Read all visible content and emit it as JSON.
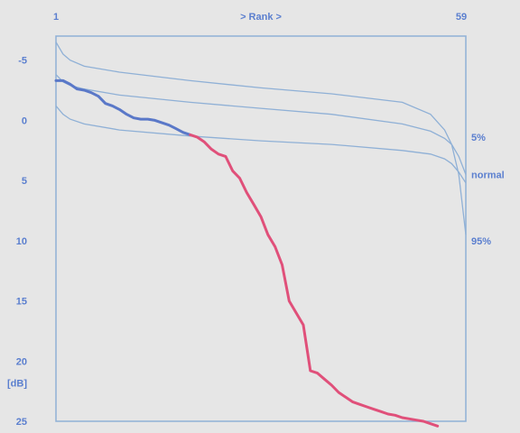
{
  "chart_data": {
    "type": "line",
    "title": "",
    "xlabel": "> Rank >",
    "ylabel": "[dB]",
    "x_tick_labels": [
      "1",
      "59"
    ],
    "xlim": [
      1,
      59
    ],
    "ylim": [
      -7,
      25
    ],
    "y_inverted": true,
    "y_ticks": [
      -5,
      0,
      5,
      10,
      15,
      20,
      25
    ],
    "grid": false,
    "colors": {
      "axis": "#8fb0d6",
      "text": "#5b7fcf",
      "envelope": "#8fb0d6",
      "observed_blue": "#5a78c8",
      "observed_red": "#e0507a"
    },
    "series": [
      {
        "name": "5%",
        "role": "envelope",
        "x": [
          1,
          2,
          3,
          5,
          10,
          20,
          30,
          40,
          50,
          54,
          56,
          57,
          58,
          59
        ],
        "y": [
          -1.2,
          -0.5,
          -0.1,
          0.3,
          0.8,
          1.3,
          1.7,
          2.0,
          2.5,
          2.8,
          3.2,
          3.6,
          4.3,
          5.2
        ]
      },
      {
        "name": "normal",
        "role": "envelope",
        "x": [
          1,
          2,
          3,
          5,
          10,
          20,
          30,
          40,
          50,
          54,
          56,
          57,
          58,
          59
        ],
        "y": [
          -3.8,
          -3.2,
          -2.9,
          -2.6,
          -2.1,
          -1.5,
          -1.0,
          -0.5,
          0.3,
          0.9,
          1.5,
          2.0,
          3.0,
          4.5
        ]
      },
      {
        "name": "95%",
        "role": "envelope",
        "x": [
          1,
          2,
          3,
          5,
          10,
          20,
          30,
          40,
          50,
          54,
          56,
          57,
          58,
          59
        ],
        "y": [
          -6.5,
          -5.5,
          -5.0,
          -4.5,
          -4.0,
          -3.3,
          -2.7,
          -2.2,
          -1.5,
          -0.5,
          0.8,
          2.0,
          4.5,
          9.5
        ]
      },
      {
        "role": "observed",
        "color_key": "observed_blue",
        "x": [
          1,
          2,
          3,
          4,
          5,
          6,
          7,
          8,
          9,
          10,
          11,
          12,
          13,
          14,
          15,
          16,
          17,
          18,
          19,
          20
        ],
        "y": [
          -3.3,
          -3.3,
          -3.0,
          -2.6,
          -2.5,
          -2.3,
          -2.0,
          -1.4,
          -1.2,
          -0.9,
          -0.5,
          -0.2,
          -0.1,
          -0.1,
          0.0,
          0.2,
          0.4,
          0.7,
          1.0,
          1.2
        ]
      },
      {
        "role": "observed",
        "color_key": "observed_red",
        "x": [
          20,
          21,
          22,
          23,
          24,
          25,
          26,
          27,
          28,
          29,
          30,
          31,
          32,
          33,
          34,
          35,
          36,
          37,
          38,
          39,
          40,
          41,
          42,
          43,
          44,
          45,
          46,
          47,
          48,
          49,
          50,
          51,
          52,
          53,
          54,
          55
        ],
        "y": [
          1.2,
          1.4,
          1.8,
          2.4,
          2.8,
          3.0,
          4.2,
          4.8,
          6.0,
          7.0,
          8.0,
          9.5,
          10.5,
          12.0,
          15.0,
          16.0,
          17.0,
          20.8,
          21.0,
          21.5,
          22.0,
          22.6,
          23.0,
          23.4,
          23.6,
          23.8,
          24.0,
          24.2,
          24.4,
          24.5,
          24.7,
          24.8,
          24.9,
          25.0,
          25.2,
          25.4
        ]
      }
    ]
  }
}
